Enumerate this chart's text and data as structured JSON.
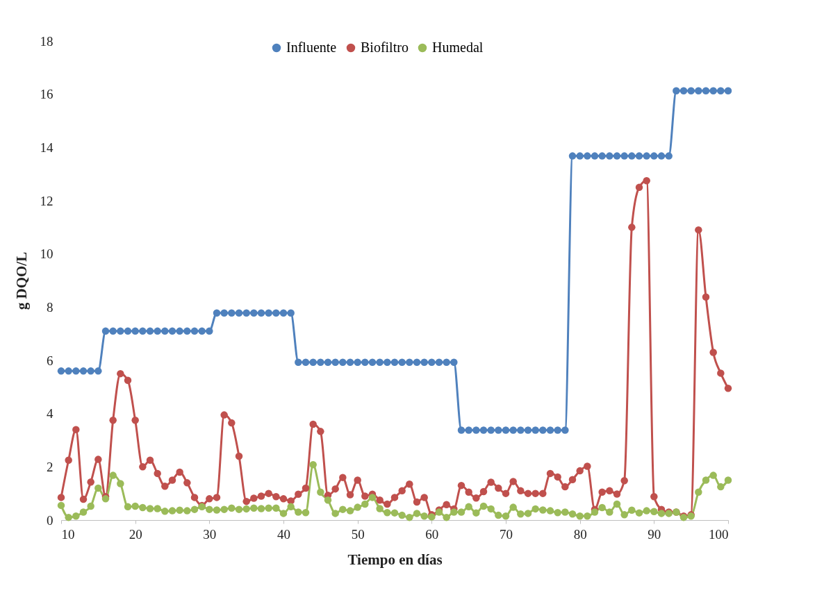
{
  "chart_data": {
    "type": "line",
    "xlabel": "Tiempo en días",
    "ylabel": "g DQO/L",
    "x": [
      10,
      11,
      12,
      13,
      14,
      15,
      16,
      17,
      18,
      19,
      20,
      21,
      22,
      23,
      24,
      25,
      26,
      27,
      28,
      29,
      30,
      31,
      32,
      33,
      34,
      35,
      36,
      37,
      38,
      39,
      40,
      41,
      42,
      43,
      44,
      45,
      46,
      47,
      48,
      49,
      50,
      51,
      52,
      53,
      54,
      55,
      56,
      57,
      58,
      59,
      60,
      61,
      62,
      63,
      64,
      65,
      66,
      67,
      68,
      69,
      70,
      71,
      72,
      73,
      74,
      75,
      76,
      77,
      78,
      79,
      80,
      81,
      82,
      83,
      84,
      85,
      86,
      87,
      88,
      89,
      90,
      91,
      92,
      93,
      94,
      95,
      96,
      97,
      98,
      99,
      100
    ],
    "series": [
      {
        "name": "Influente",
        "color": "#4f81bd",
        "values": [
          5.6,
          5.6,
          5.6,
          5.6,
          5.6,
          5.6,
          7.1,
          7.1,
          7.1,
          7.1,
          7.1,
          7.1,
          7.1,
          7.1,
          7.1,
          7.1,
          7.1,
          7.1,
          7.1,
          7.1,
          7.1,
          7.78,
          7.78,
          7.78,
          7.78,
          7.78,
          7.78,
          7.78,
          7.78,
          7.78,
          7.78,
          7.78,
          5.93,
          5.93,
          5.93,
          5.93,
          5.93,
          5.93,
          5.93,
          5.93,
          5.93,
          5.93,
          5.93,
          5.93,
          5.93,
          5.93,
          5.93,
          5.93,
          5.93,
          5.93,
          5.93,
          5.93,
          5.93,
          5.93,
          3.38,
          3.38,
          3.38,
          3.38,
          3.38,
          3.38,
          3.38,
          3.38,
          3.38,
          3.38,
          3.38,
          3.38,
          3.38,
          3.38,
          3.38,
          13.68,
          13.68,
          13.68,
          13.68,
          13.68,
          13.68,
          13.68,
          13.68,
          13.68,
          13.68,
          13.68,
          13.68,
          13.68,
          13.68,
          16.13,
          16.13,
          16.13,
          16.13,
          16.13,
          16.13,
          16.13,
          16.13
        ]
      },
      {
        "name": "Biofiltro",
        "color": "#c0504d",
        "values": [
          0.85,
          2.25,
          3.4,
          0.78,
          1.43,
          2.28,
          0.88,
          3.75,
          5.5,
          5.25,
          3.75,
          2.0,
          2.25,
          1.75,
          1.27,
          1.5,
          1.8,
          1.4,
          0.85,
          0.55,
          0.8,
          0.85,
          3.95,
          3.65,
          2.4,
          0.7,
          0.82,
          0.9,
          1.0,
          0.88,
          0.8,
          0.72,
          0.97,
          1.2,
          3.6,
          3.33,
          0.93,
          1.17,
          1.6,
          0.95,
          1.5,
          0.9,
          0.97,
          0.75,
          0.6,
          0.85,
          1.1,
          1.35,
          0.68,
          0.85,
          0.2,
          0.38,
          0.58,
          0.42,
          1.3,
          1.05,
          0.83,
          1.07,
          1.42,
          1.2,
          1.0,
          1.45,
          1.1,
          1.0,
          1.0,
          1.0,
          1.75,
          1.62,
          1.25,
          1.52,
          1.85,
          2.02,
          0.4,
          1.05,
          1.1,
          0.98,
          1.48,
          11.0,
          12.5,
          12.75,
          0.88,
          0.4,
          0.3,
          0.3,
          0.15,
          0.2,
          10.9,
          8.38,
          6.3,
          5.52,
          4.95
        ]
      },
      {
        "name": "Humedal",
        "color": "#9bbb59",
        "values": [
          0.55,
          0.1,
          0.15,
          0.3,
          0.52,
          1.2,
          0.8,
          1.68,
          1.37,
          0.5,
          0.52,
          0.47,
          0.43,
          0.43,
          0.33,
          0.35,
          0.37,
          0.35,
          0.4,
          0.5,
          0.4,
          0.38,
          0.4,
          0.45,
          0.4,
          0.42,
          0.45,
          0.43,
          0.45,
          0.45,
          0.25,
          0.5,
          0.3,
          0.28,
          2.08,
          1.05,
          0.75,
          0.25,
          0.4,
          0.35,
          0.48,
          0.6,
          0.85,
          0.43,
          0.28,
          0.27,
          0.18,
          0.1,
          0.25,
          0.15,
          0.12,
          0.3,
          0.1,
          0.3,
          0.3,
          0.5,
          0.27,
          0.52,
          0.42,
          0.18,
          0.15,
          0.48,
          0.23,
          0.25,
          0.42,
          0.38,
          0.35,
          0.28,
          0.3,
          0.23,
          0.15,
          0.15,
          0.3,
          0.47,
          0.3,
          0.6,
          0.2,
          0.37,
          0.27,
          0.35,
          0.32,
          0.25,
          0.25,
          0.3,
          0.1,
          0.15,
          1.05,
          1.5,
          1.68,
          1.25,
          1.5
        ]
      }
    ],
    "xlim": [
      10,
      100
    ],
    "xticks": [
      10,
      20,
      30,
      40,
      50,
      60,
      70,
      80,
      90,
      100
    ],
    "ylim": [
      0,
      18
    ],
    "yticks": [
      0,
      2,
      4,
      6,
      8,
      10,
      12,
      14,
      16,
      18
    ],
    "grid": false,
    "legend": "top",
    "marker": "circle",
    "line_style": "solid"
  }
}
